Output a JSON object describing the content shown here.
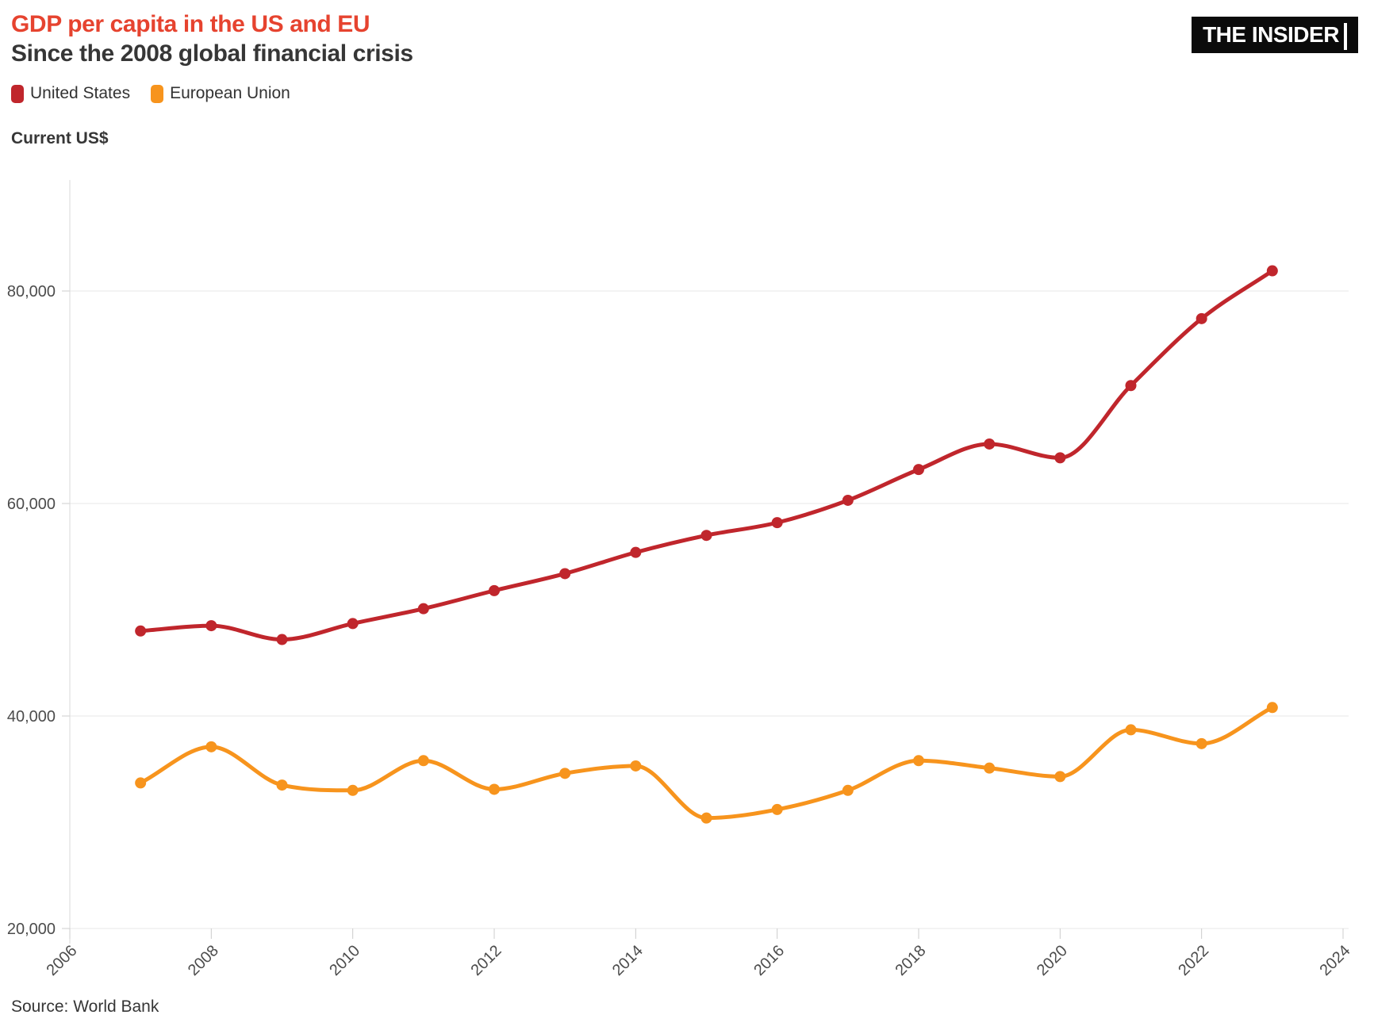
{
  "header": {
    "title": "GDP per capita in the US and EU",
    "subtitle": "Since the 2008 global financial crisis",
    "logo_text": "THE INSIDER"
  },
  "legend": [
    {
      "label": "United States",
      "color": "#c0262c"
    },
    {
      "label": "European Union",
      "color": "#f7941d"
    }
  ],
  "axis_label": "Current US$",
  "source": "Source: World Bank",
  "colors": {
    "title_accent": "#e6432f",
    "subtitle_text": "#363636",
    "us_line": "#c0262c",
    "eu_line": "#f7941d",
    "gridline": "#e7e7e7",
    "axis_line": "#d9d9d9",
    "axis_text": "#4c4c4c",
    "logo_background": "#0b0b0b",
    "logo_text": "#ffffff"
  },
  "chart_data": {
    "type": "line",
    "title": "GDP per capita in the US and EU",
    "subtitle": "Since the 2008 global financial crisis",
    "ylabel": "Current US$",
    "x": [
      2007,
      2008,
      2009,
      2010,
      2011,
      2012,
      2013,
      2014,
      2015,
      2016,
      2017,
      2018,
      2019,
      2020,
      2021,
      2022,
      2023
    ],
    "series": [
      {
        "name": "United States",
        "color": "#c0262c",
        "values": [
          48000,
          48500,
          47200,
          48700,
          50100,
          51800,
          53400,
          55400,
          57000,
          58200,
          60300,
          63200,
          65600,
          64300,
          71100,
          77400,
          81900
        ]
      },
      {
        "name": "European Union",
        "color": "#f7941d",
        "values": [
          33700,
          37100,
          33500,
          33000,
          35800,
          33100,
          34600,
          35300,
          30400,
          31200,
          33000,
          35800,
          35100,
          34300,
          38700,
          37400,
          40800
        ]
      }
    ],
    "xlim": [
      2006,
      2024
    ],
    "ylim": [
      20000,
      80000
    ],
    "yticks": [
      20000,
      40000,
      60000,
      80000
    ],
    "ytick_labels": [
      "20,000",
      "40,000",
      "60,000",
      "80,000"
    ],
    "xticks": [
      2006,
      2008,
      2010,
      2012,
      2014,
      2016,
      2018,
      2020,
      2022,
      2024
    ],
    "grid": "horizontal-only",
    "legend_position": "top-left",
    "marker": "circle",
    "line_interpolation": "monotone",
    "source": "Source: World Bank"
  }
}
